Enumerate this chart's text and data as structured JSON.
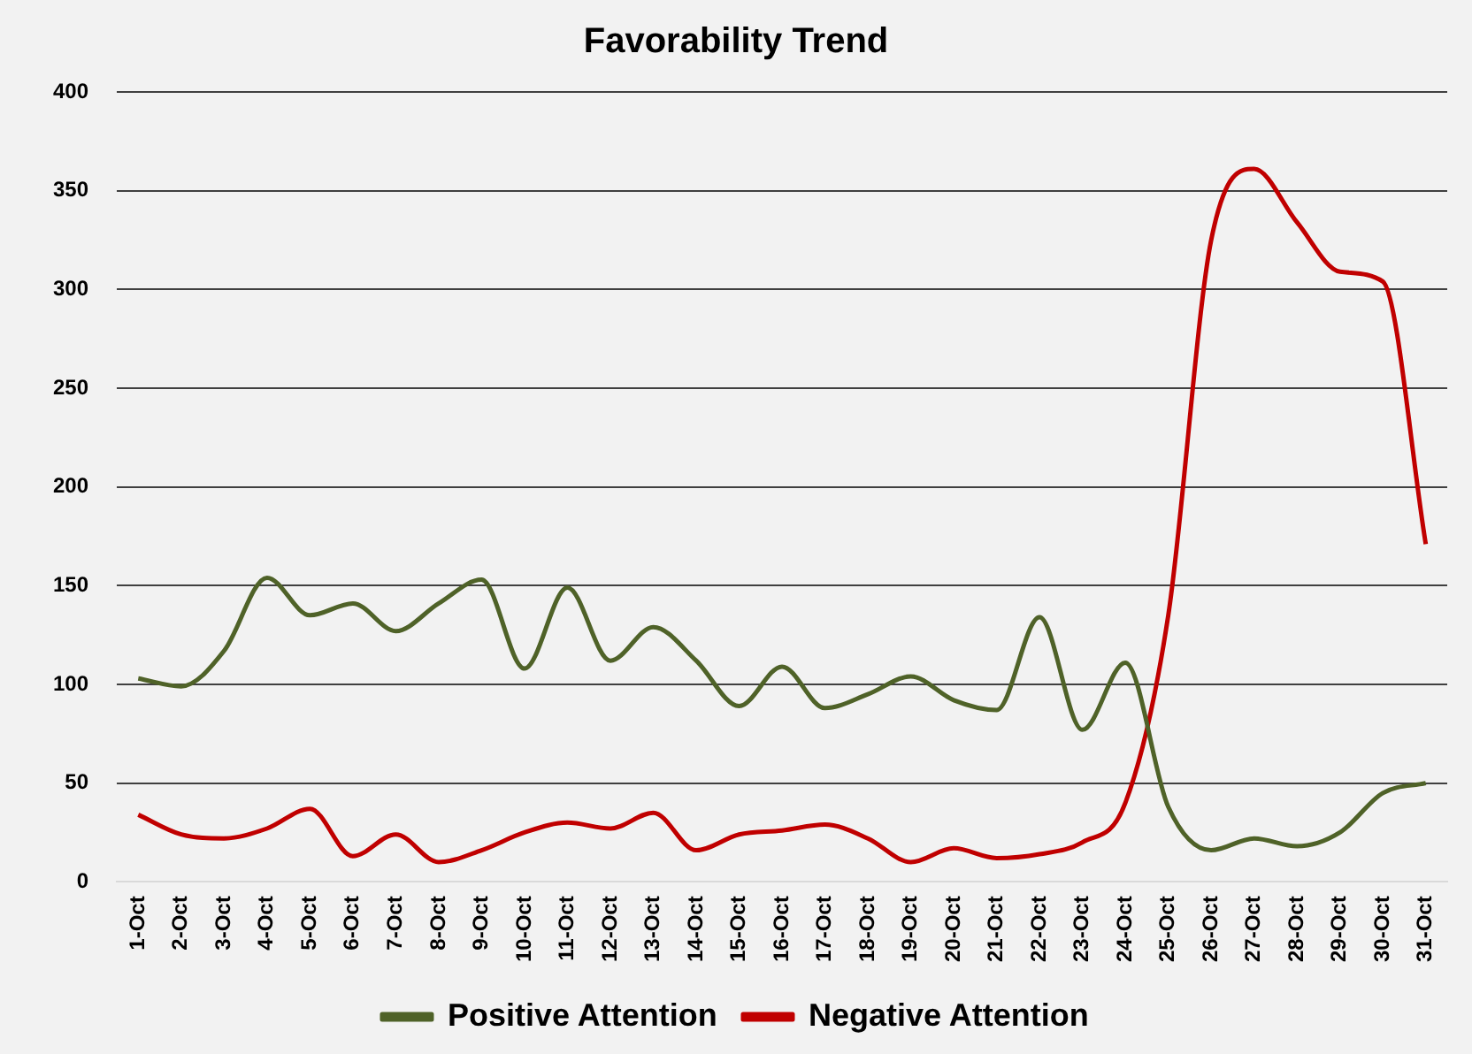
{
  "chart_data": {
    "type": "line",
    "title": "Favorability Trend",
    "categories": [
      "1-Oct",
      "2-Oct",
      "3-Oct",
      "4-Oct",
      "5-Oct",
      "6-Oct",
      "7-Oct",
      "8-Oct",
      "9-Oct",
      "10-Oct",
      "11-Oct",
      "12-Oct",
      "13-Oct",
      "14-Oct",
      "15-Oct",
      "16-Oct",
      "17-Oct",
      "18-Oct",
      "19-Oct",
      "20-Oct",
      "21-Oct",
      "22-Oct",
      "23-Oct",
      "24-Oct",
      "25-Oct",
      "26-Oct",
      "27-Oct",
      "28-Oct",
      "29-Oct",
      "30-Oct",
      "31-Oct"
    ],
    "series": [
      {
        "name": "Positive Attention",
        "color": "#4f6228",
        "values": [
          103,
          99,
          117,
          154,
          135,
          141,
          127,
          141,
          153,
          108,
          149,
          112,
          129,
          112,
          89,
          109,
          88,
          95,
          104,
          92,
          87,
          134,
          77,
          111,
          38,
          16,
          22,
          18,
          25,
          45,
          50
        ]
      },
      {
        "name": "Negative Attention",
        "color": "#c00000",
        "values": [
          34,
          24,
          22,
          27,
          37,
          13,
          24,
          10,
          16,
          25,
          30,
          27,
          35,
          16,
          24,
          26,
          29,
          22,
          10,
          17,
          12,
          14,
          20,
          40,
          135,
          325,
          361,
          334,
          309,
          304,
          171
        ]
      }
    ],
    "ylim": [
      0,
      400
    ],
    "yticks": [
      0,
      50,
      100,
      150,
      200,
      250,
      300,
      350,
      400
    ],
    "grid": "y",
    "legend": "bottom",
    "marker": "none"
  }
}
